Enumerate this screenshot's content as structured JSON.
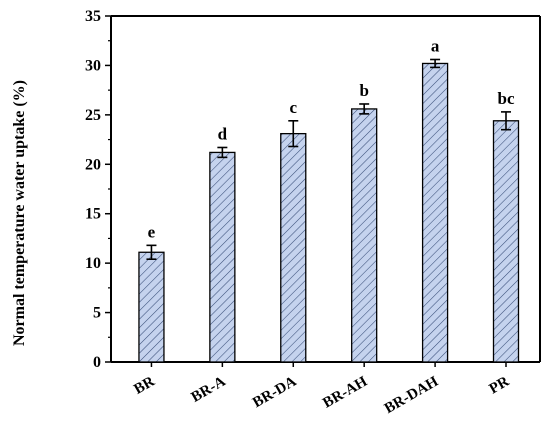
{
  "chart_data": {
    "type": "bar",
    "categories": [
      "BR",
      "BR-A",
      "BR-DA",
      "BR-AH",
      "BR-DAH",
      "PR"
    ],
    "values": [
      11.1,
      21.2,
      23.1,
      25.6,
      30.2,
      24.4
    ],
    "errors": [
      0.7,
      0.5,
      1.3,
      0.5,
      0.4,
      0.9
    ],
    "significance_labels": [
      "e",
      "d",
      "c",
      "b",
      "a",
      "bc"
    ],
    "ylabel": "Normal temperature water uptake (%)",
    "xlabel": "",
    "title": "",
    "ylim": [
      0,
      35
    ],
    "yticks": [
      "0",
      "5",
      "10",
      "15",
      "20",
      "25",
      "30",
      "35"
    ],
    "bar_fill": "#c5d3ee",
    "bar_hatch": "diagonal",
    "bar_stroke": "#000000",
    "grid": false,
    "legend": "none"
  }
}
